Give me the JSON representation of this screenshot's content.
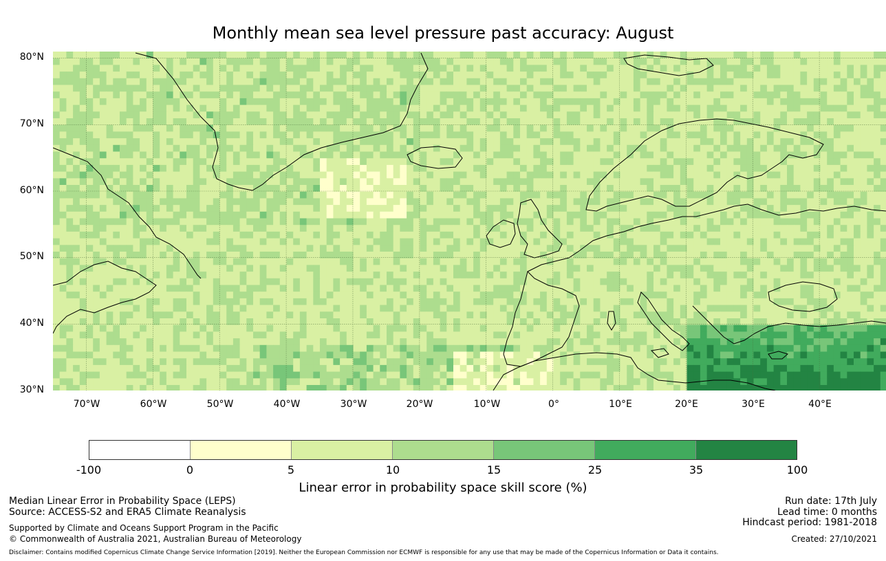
{
  "title": "Monthly mean sea level pressure past accuracy: August",
  "map": {
    "lat_labels": [
      "80°N",
      "70°N",
      "60°N",
      "50°N",
      "40°N",
      "30°N"
    ],
    "lon_labels": [
      "70°W",
      "60°W",
      "50°W",
      "40°W",
      "30°W",
      "20°W",
      "10°W",
      "0°",
      "10°E",
      "20°E",
      "30°E",
      "40°E"
    ],
    "lon_range": [
      -75,
      50
    ],
    "lat_range": [
      30,
      81
    ],
    "gridlines": true
  },
  "colorbar": {
    "ticks": [
      "-100",
      "0",
      "5",
      "10",
      "15",
      "25",
      "35",
      "100"
    ],
    "colors": [
      "#ffffff",
      "#ffffcc",
      "#d9f0a3",
      "#addd8e",
      "#78c679",
      "#41ab5d",
      "#238443"
    ],
    "label": "Linear error in probability space skill score (%)"
  },
  "info": {
    "left_line1": "Median Linear Error in Probability Space (LEPS)",
    "left_line2": "Source: ACCESS-S2 and ERA5 Climate Reanalysis",
    "left_line3": "Supported by Climate and Oceans Support Program in the Pacific",
    "left_line4": "© Commonwealth of Australia 2021, Australian Bureau of Meteorology",
    "right_line1": "Run date: 17th July",
    "right_line2": "Lead time: 0 months",
    "right_line3": "Hindcast period: 1981-2018",
    "right_line4": "Created: 27/10/2021"
  },
  "disclaimer": "Disclaimer: Contains modified Copernicus Climate Change Service Information [2019]. Neither the European Commission nor ECMWF is responsible for any use that may be made of the Copernicus Information or Data it contains."
}
